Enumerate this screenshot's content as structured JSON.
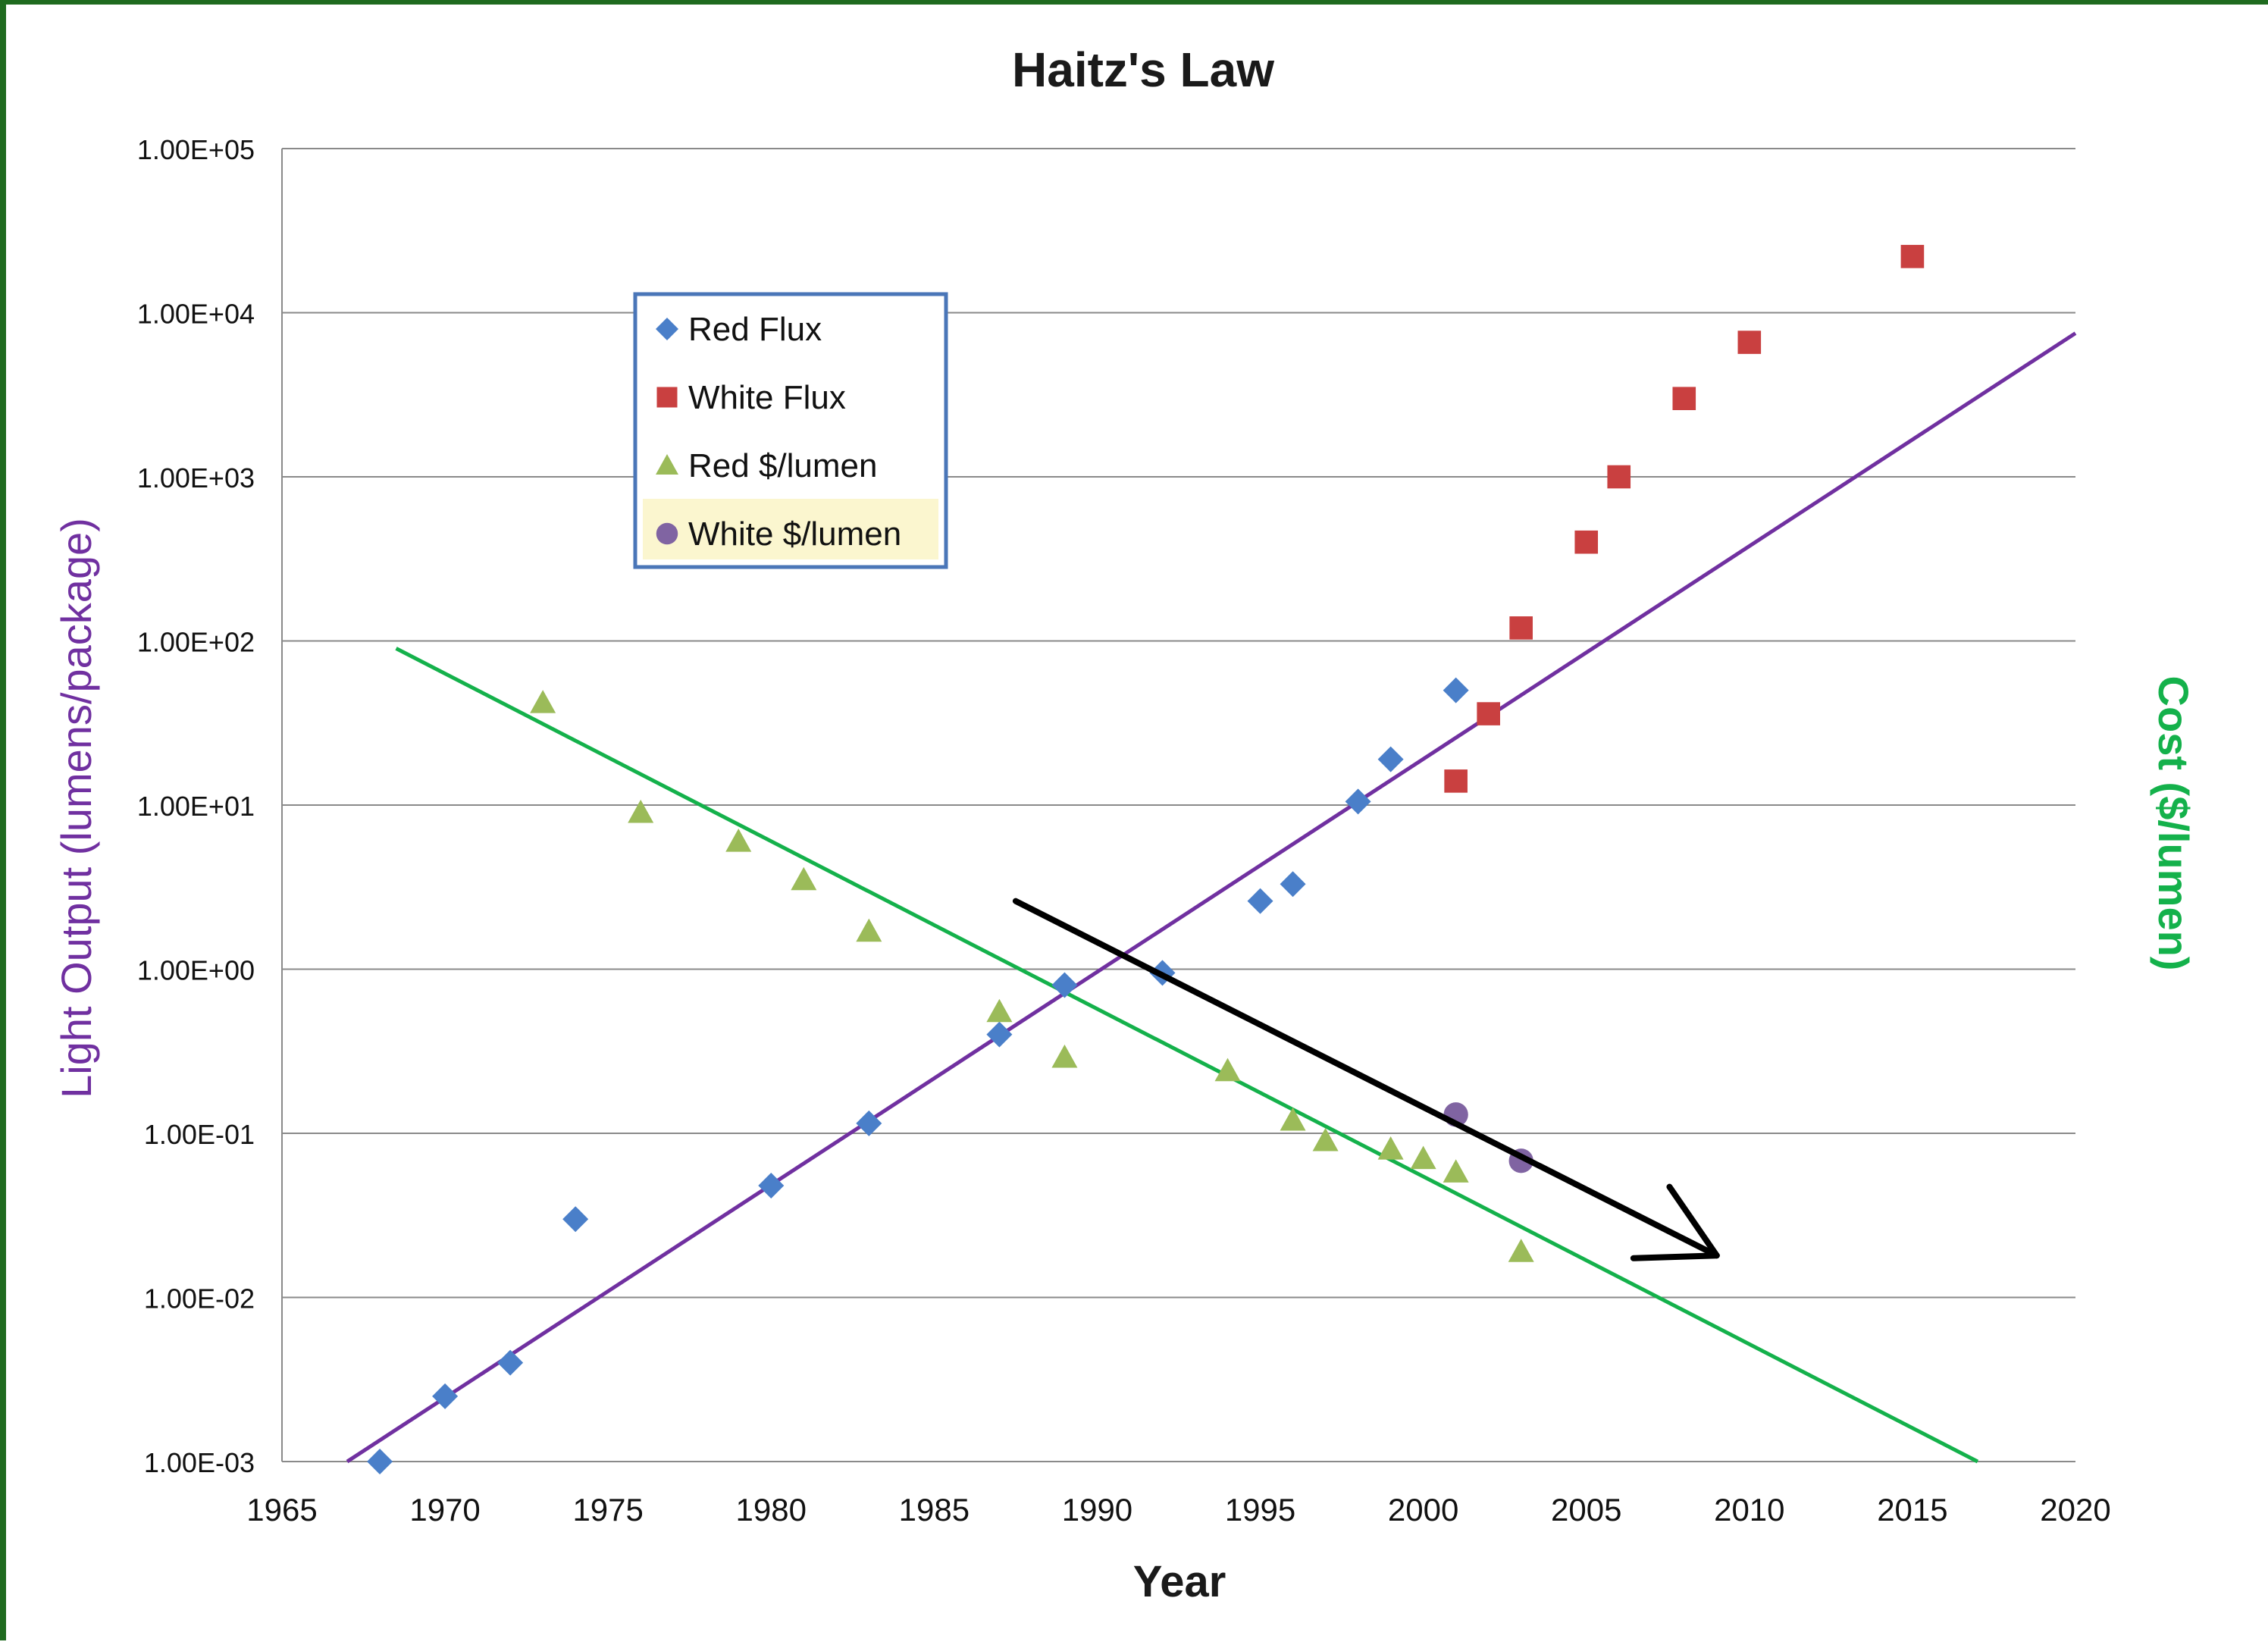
{
  "chart_data": {
    "type": "scatter",
    "title": "Haitz's Law",
    "xlabel": "Year",
    "ylabel": "Light Output (lumens/package)",
    "ylabel_right": "Cost ($/lumen)",
    "xlim": [
      1965,
      2020
    ],
    "ylim": [
      0.001,
      100000
    ],
    "yscale": "log",
    "grid": "horizontal",
    "legend_position": "upper-left",
    "x_ticks": [
      "1965",
      "1970",
      "1975",
      "1980",
      "1985",
      "1990",
      "1995",
      "2000",
      "2005",
      "2010",
      "2015",
      "2020"
    ],
    "y_ticks": [
      "1.00E-03",
      "1.00E-02",
      "1.00E-01",
      "1.00E+00",
      "1.00E+01",
      "1.00E+02",
      "1.00E+03",
      "1.00E+04",
      "1.00E+05"
    ],
    "series": [
      {
        "name": "Red Flux",
        "marker": "diamond",
        "color": "#4a7fc9",
        "points": [
          [
            1968,
            0.001
          ],
          [
            1970,
            0.0025
          ],
          [
            1972,
            0.004
          ],
          [
            1974,
            0.03
          ],
          [
            1980,
            0.048
          ],
          [
            1983,
            0.115
          ],
          [
            1987,
            0.4
          ],
          [
            1989,
            0.8
          ],
          [
            1992,
            0.95
          ],
          [
            1995,
            2.6
          ],
          [
            1996,
            3.3
          ],
          [
            1998,
            10.5
          ],
          [
            1999,
            19
          ],
          [
            2001,
            50
          ]
        ]
      },
      {
        "name": "White Flux",
        "marker": "square",
        "color": "#c94040",
        "points": [
          [
            2001,
            14
          ],
          [
            2002,
            36
          ],
          [
            2003,
            120
          ],
          [
            2005,
            400
          ],
          [
            2006,
            1000
          ],
          [
            2008,
            3000
          ],
          [
            2010,
            6600
          ],
          [
            2015,
            22000
          ]
        ]
      },
      {
        "name": "Red $/lumen",
        "marker": "triangle",
        "color": "#9bbb59",
        "points": [
          [
            1973,
            42
          ],
          [
            1976,
            9
          ],
          [
            1979,
            6
          ],
          [
            1981,
            3.5
          ],
          [
            1983,
            1.7
          ],
          [
            1987,
            0.55
          ],
          [
            1989,
            0.29
          ],
          [
            1994,
            0.24
          ],
          [
            1996,
            0.12
          ],
          [
            1997,
            0.09
          ],
          [
            1999,
            0.08
          ],
          [
            2000,
            0.07
          ],
          [
            2001,
            0.058
          ],
          [
            2003,
            0.019
          ]
        ]
      },
      {
        "name": "White $/lumen",
        "marker": "circle",
        "color": "#8064a2",
        "points": [
          [
            2001,
            0.13
          ],
          [
            2003,
            0.068
          ]
        ]
      }
    ],
    "trend_lines": [
      {
        "color": "#7030a0",
        "from": [
          1967,
          0.001
        ],
        "to": [
          2020,
          7500
        ]
      },
      {
        "color": "#14b14b",
        "from": [
          1968.5,
          90
        ],
        "to": [
          2017,
          0.001
        ]
      }
    ],
    "arrow": {
      "color": "#000000",
      "from": [
        1987.5,
        2.6
      ],
      "to": [
        2009,
        0.018
      ]
    }
  }
}
